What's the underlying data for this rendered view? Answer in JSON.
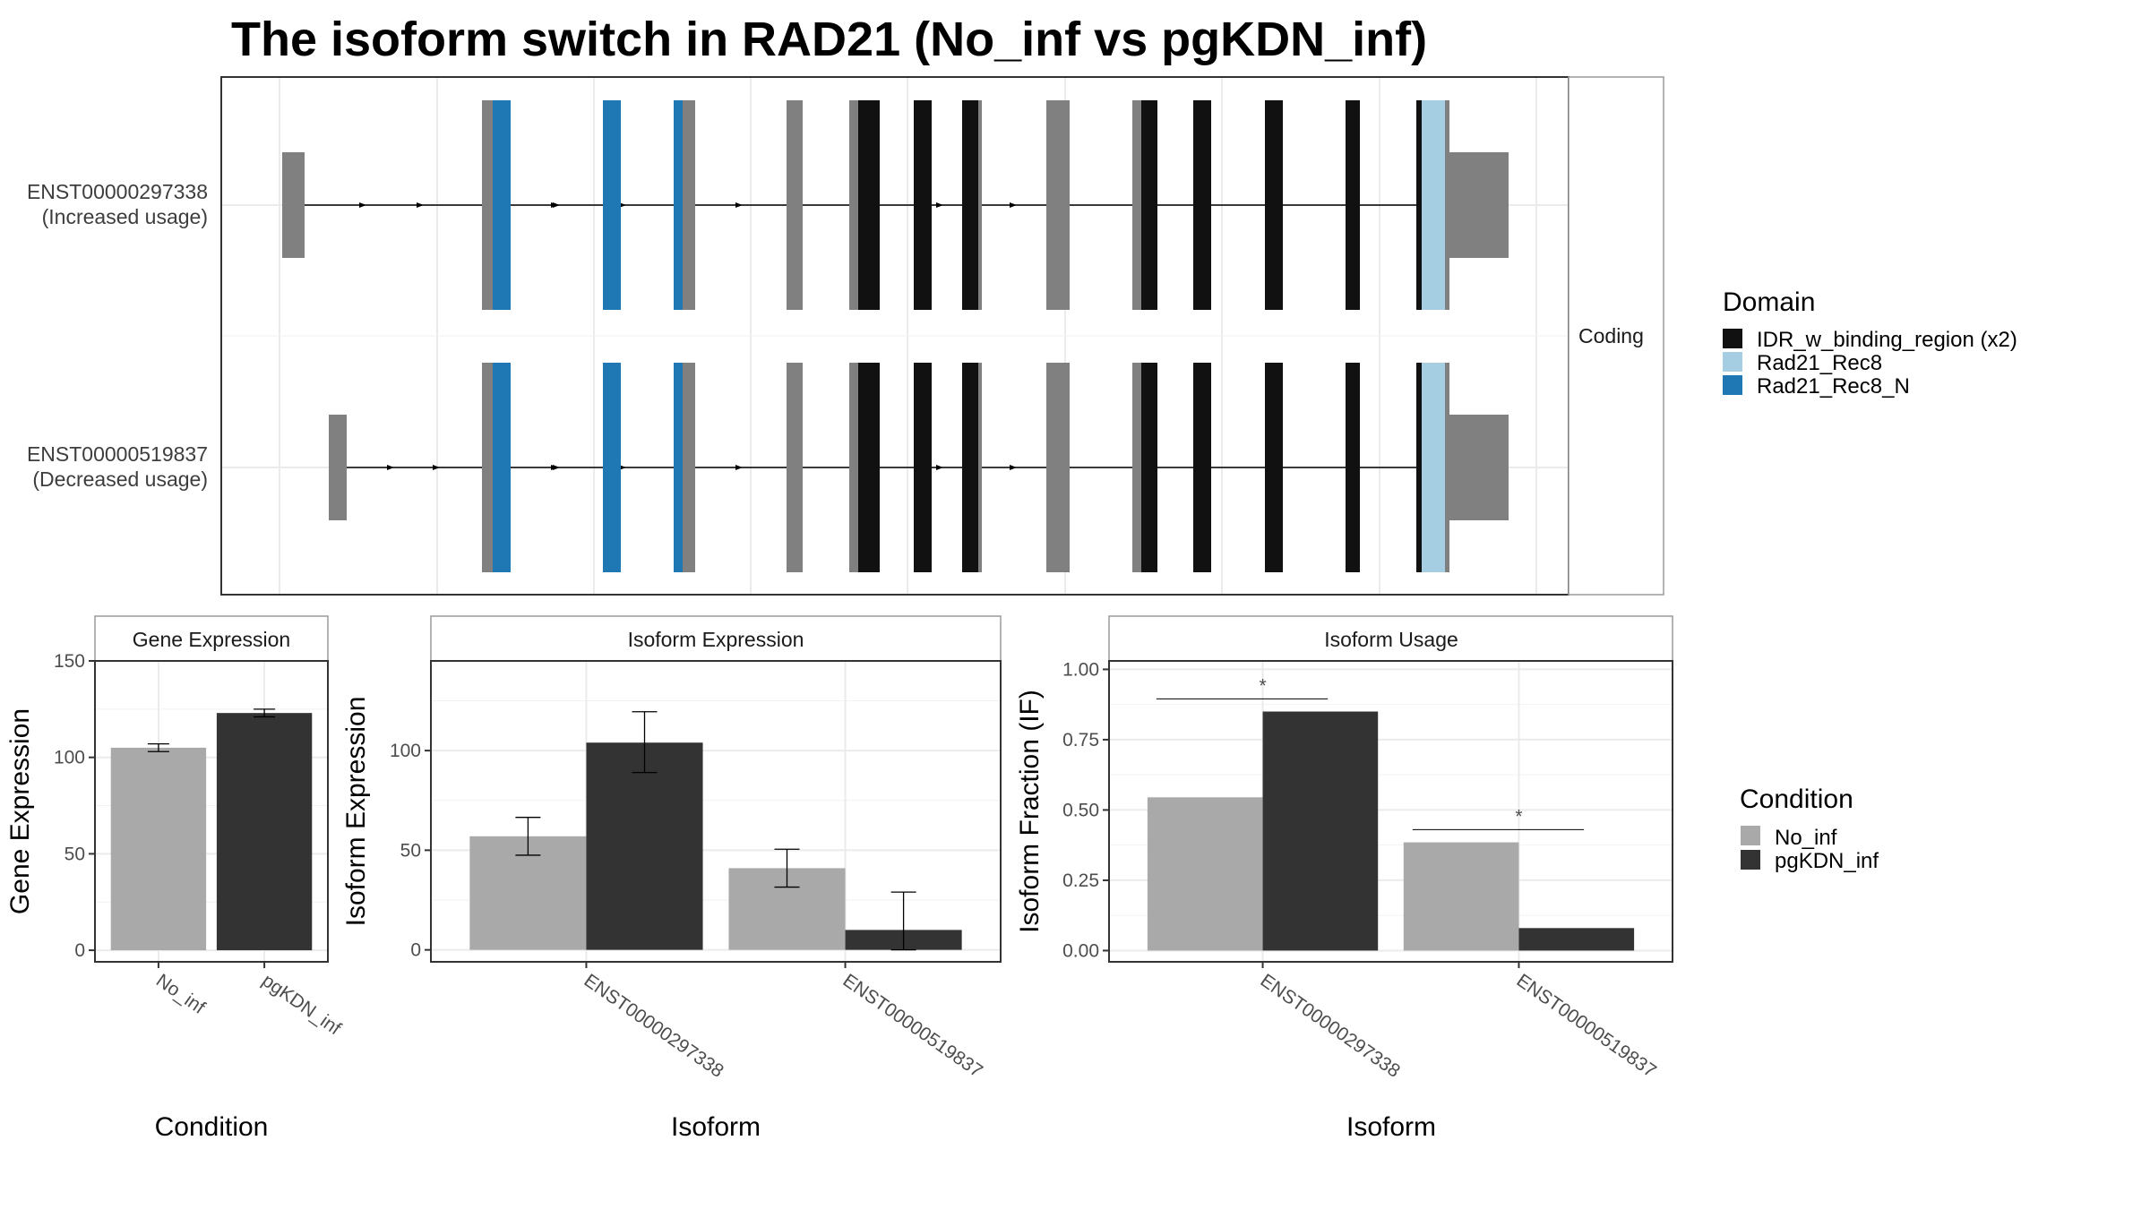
{
  "title": "The isoform switch in RAD21 (No_inf vs pgKDN_inf)",
  "colors": {
    "no_inf": "#a9a9a9",
    "pgkdn_inf": "#333333",
    "exon": "#808080",
    "IDR_w_binding_region": "#111111",
    "Rad21_Rec8": "#a6cee3",
    "Rad21_Rec8_N": "#1f78b4"
  },
  "chart_data": [
    {
      "type": "gene_structure",
      "facet_label": "Coding",
      "isoforms": [
        {
          "id": "ENST00000297338",
          "label": [
            "ENST00000297338",
            "(Increased usage)"
          ]
        },
        {
          "id": "ENST00000519837",
          "label": [
            "ENST00000519837",
            "(Decreased usage)"
          ]
        }
      ],
      "legend_title": "Domain",
      "legend": [
        "IDR_w_binding_region (x2)",
        "Rad21_Rec8",
        "Rad21_Rec8_N"
      ]
    },
    {
      "type": "bar",
      "strip": "Gene Expression",
      "xlabel": "Condition",
      "ylabel": "Gene Expression",
      "categories": [
        "No_inf",
        "pgKDN_inf"
      ],
      "values": [
        105,
        123
      ],
      "errors": [
        [
          103,
          107
        ],
        [
          121,
          125
        ]
      ],
      "ylim": [
        -6,
        150
      ],
      "yticks": [
        0,
        50,
        100,
        150
      ],
      "colors": [
        "#a9a9a9",
        "#333333"
      ]
    },
    {
      "type": "bar",
      "strip": "Isoform Expression",
      "xlabel": "Isoform",
      "ylabel": "Isoform Expression",
      "categories": [
        "ENST00000297338",
        "ENST00000519837"
      ],
      "series": [
        {
          "name": "No_inf",
          "values": [
            57,
            41
          ],
          "errors": [
            [
              47.5,
              66.5
            ],
            [
              31.5,
              50.5
            ]
          ]
        },
        {
          "name": "pgKDN_inf",
          "values": [
            104,
            10
          ],
          "errors": [
            [
              89,
              119.5
            ],
            [
              0,
              29
            ]
          ]
        }
      ],
      "ylim": [
        -6,
        145
      ],
      "yticks": [
        0,
        50,
        100
      ]
    },
    {
      "type": "bar",
      "strip": "Isoform Usage",
      "xlabel": "Isoform",
      "ylabel": "Isoform Fraction (IF)",
      "categories": [
        "ENST00000297338",
        "ENST00000519837"
      ],
      "series": [
        {
          "name": "No_inf",
          "values": [
            0.545,
            0.385
          ]
        },
        {
          "name": "pgKDN_inf",
          "values": [
            0.85,
            0.08
          ]
        }
      ],
      "significance": [
        "*",
        "*"
      ],
      "ylim": [
        -0.04,
        1.03
      ],
      "yticks": [
        "0.00",
        "0.25",
        "0.50",
        "0.75",
        "1.00"
      ]
    }
  ],
  "condition_legend": {
    "title": "Condition",
    "items": [
      "No_inf",
      "pgKDN_inf"
    ]
  }
}
